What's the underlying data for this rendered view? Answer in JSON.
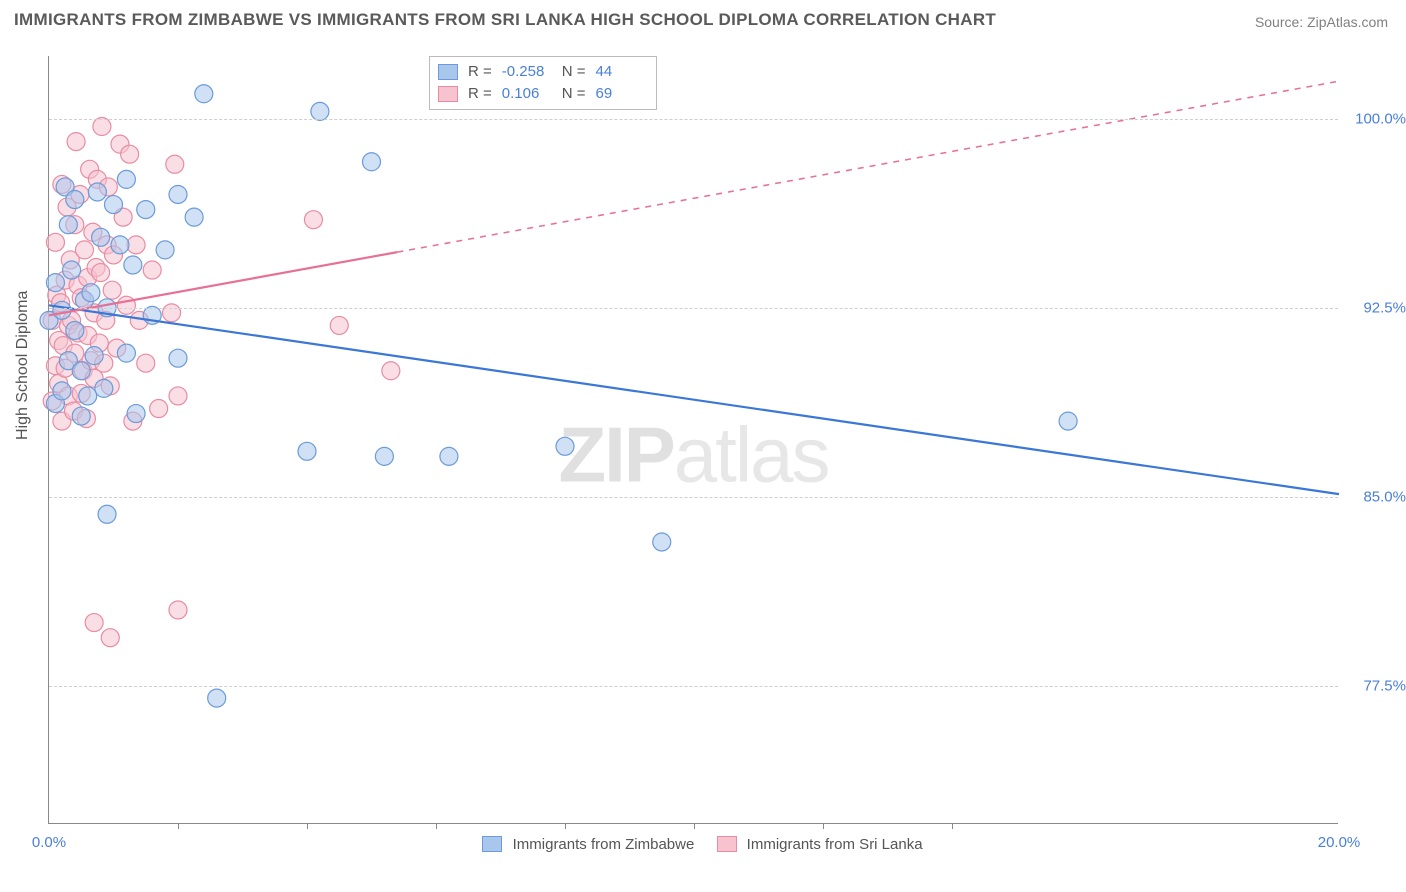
{
  "title": "IMMIGRANTS FROM ZIMBABWE VS IMMIGRANTS FROM SRI LANKA HIGH SCHOOL DIPLOMA CORRELATION CHART",
  "source": "Source: ZipAtlas.com",
  "ylabel": "High School Diploma",
  "watermark_bold": "ZIP",
  "watermark_light": "atlas",
  "chart": {
    "type": "scatter",
    "xlim": [
      0.0,
      20.0
    ],
    "ylim": [
      72.0,
      102.5
    ],
    "yticks": [
      77.5,
      85.0,
      92.5,
      100.0
    ],
    "ytick_labels": [
      "77.5%",
      "85.0%",
      "92.5%",
      "100.0%"
    ],
    "xticks": [
      0.0,
      20.0
    ],
    "xtick_labels": [
      "0.0%",
      "20.0%"
    ],
    "xtick_minor": [
      2,
      4,
      6,
      8,
      10,
      12,
      14
    ],
    "background_color": "#ffffff",
    "grid_color": "#cfcfcf",
    "marker_radius": 9,
    "marker_opacity": 0.55,
    "line_width": 2.2,
    "series": [
      {
        "name": "Immigrants from Zimbabwe",
        "color_fill": "#a9c6ec",
        "color_stroke": "#6b9bd8",
        "line_color": "#3a77d6",
        "R": -0.258,
        "N": 44,
        "trend": {
          "x1": 0.0,
          "y1": 92.6,
          "x2": 20.0,
          "y2": 85.1,
          "solid_until_x": 20.0
        },
        "points": [
          [
            0.0,
            92.0
          ],
          [
            0.1,
            93.5
          ],
          [
            0.1,
            88.7
          ],
          [
            0.2,
            92.4
          ],
          [
            0.2,
            89.2
          ],
          [
            0.25,
            97.3
          ],
          [
            0.3,
            90.4
          ],
          [
            0.3,
            95.8
          ],
          [
            0.35,
            94.0
          ],
          [
            0.4,
            91.6
          ],
          [
            0.4,
            96.8
          ],
          [
            0.5,
            88.2
          ],
          [
            0.5,
            90.0
          ],
          [
            0.55,
            92.8
          ],
          [
            0.6,
            89.0
          ],
          [
            0.65,
            93.1
          ],
          [
            0.7,
            90.6
          ],
          [
            0.75,
            97.1
          ],
          [
            0.8,
            95.3
          ],
          [
            0.85,
            89.3
          ],
          [
            0.9,
            84.3
          ],
          [
            0.9,
            92.5
          ],
          [
            1.0,
            96.6
          ],
          [
            1.1,
            95.0
          ],
          [
            1.2,
            90.7
          ],
          [
            1.2,
            97.6
          ],
          [
            1.3,
            94.2
          ],
          [
            1.35,
            88.3
          ],
          [
            1.5,
            96.4
          ],
          [
            1.6,
            92.2
          ],
          [
            1.8,
            94.8
          ],
          [
            2.0,
            97.0
          ],
          [
            2.0,
            90.5
          ],
          [
            2.25,
            96.1
          ],
          [
            2.4,
            101.0
          ],
          [
            2.6,
            77.0
          ],
          [
            4.0,
            86.8
          ],
          [
            4.2,
            100.3
          ],
          [
            5.0,
            98.3
          ],
          [
            5.2,
            86.6
          ],
          [
            6.2,
            86.6
          ],
          [
            8.0,
            87.0
          ],
          [
            9.5,
            83.2
          ],
          [
            15.8,
            88.0
          ]
        ]
      },
      {
        "name": "Immigrants from Sri Lanka",
        "color_fill": "#f6c3cf",
        "color_stroke": "#e88ca3",
        "line_color": "#e77095",
        "R": 0.106,
        "N": 69,
        "trend": {
          "x1": 0.0,
          "y1": 92.2,
          "x2": 20.0,
          "y2": 101.5,
          "solid_until_x": 5.4
        },
        "points": [
          [
            0.05,
            92.0
          ],
          [
            0.05,
            88.8
          ],
          [
            0.1,
            90.2
          ],
          [
            0.1,
            95.1
          ],
          [
            0.12,
            93.0
          ],
          [
            0.15,
            89.5
          ],
          [
            0.15,
            91.2
          ],
          [
            0.18,
            92.7
          ],
          [
            0.2,
            97.4
          ],
          [
            0.2,
            88.0
          ],
          [
            0.22,
            91.0
          ],
          [
            0.25,
            93.6
          ],
          [
            0.25,
            90.1
          ],
          [
            0.28,
            96.5
          ],
          [
            0.3,
            91.8
          ],
          [
            0.3,
            89.0
          ],
          [
            0.33,
            94.4
          ],
          [
            0.35,
            92.0
          ],
          [
            0.38,
            88.4
          ],
          [
            0.4,
            95.8
          ],
          [
            0.4,
            90.7
          ],
          [
            0.42,
            99.1
          ],
          [
            0.45,
            93.4
          ],
          [
            0.45,
            91.5
          ],
          [
            0.48,
            97.0
          ],
          [
            0.5,
            89.1
          ],
          [
            0.5,
            92.9
          ],
          [
            0.53,
            90.0
          ],
          [
            0.55,
            94.8
          ],
          [
            0.58,
            88.1
          ],
          [
            0.6,
            91.4
          ],
          [
            0.6,
            93.7
          ],
          [
            0.63,
            98.0
          ],
          [
            0.65,
            90.4
          ],
          [
            0.68,
            95.5
          ],
          [
            0.7,
            92.3
          ],
          [
            0.7,
            89.7
          ],
          [
            0.73,
            94.1
          ],
          [
            0.75,
            97.6
          ],
          [
            0.78,
            91.1
          ],
          [
            0.8,
            93.9
          ],
          [
            0.82,
            99.7
          ],
          [
            0.85,
            90.3
          ],
          [
            0.88,
            92.0
          ],
          [
            0.9,
            95.0
          ],
          [
            0.92,
            97.3
          ],
          [
            0.95,
            89.4
          ],
          [
            0.98,
            93.2
          ],
          [
            1.0,
            94.6
          ],
          [
            1.05,
            90.9
          ],
          [
            1.1,
            99.0
          ],
          [
            1.15,
            96.1
          ],
          [
            1.2,
            92.6
          ],
          [
            1.25,
            98.6
          ],
          [
            1.3,
            88.0
          ],
          [
            1.35,
            95.0
          ],
          [
            1.4,
            92.0
          ],
          [
            1.5,
            90.3
          ],
          [
            1.6,
            94.0
          ],
          [
            1.7,
            88.5
          ],
          [
            1.9,
            92.3
          ],
          [
            1.95,
            98.2
          ],
          [
            2.0,
            80.5
          ],
          [
            2.0,
            89.0
          ],
          [
            0.7,
            80.0
          ],
          [
            0.95,
            79.4
          ],
          [
            4.1,
            96.0
          ],
          [
            4.5,
            91.8
          ],
          [
            5.3,
            90.0
          ]
        ]
      }
    ]
  },
  "legend_bottom": [
    {
      "label": "Immigrants from Zimbabwe",
      "fill": "#a9c6ec",
      "stroke": "#6b9bd8"
    },
    {
      "label": "Immigrants from Sri Lanka",
      "fill": "#f6c3cf",
      "stroke": "#e88ca3"
    }
  ]
}
